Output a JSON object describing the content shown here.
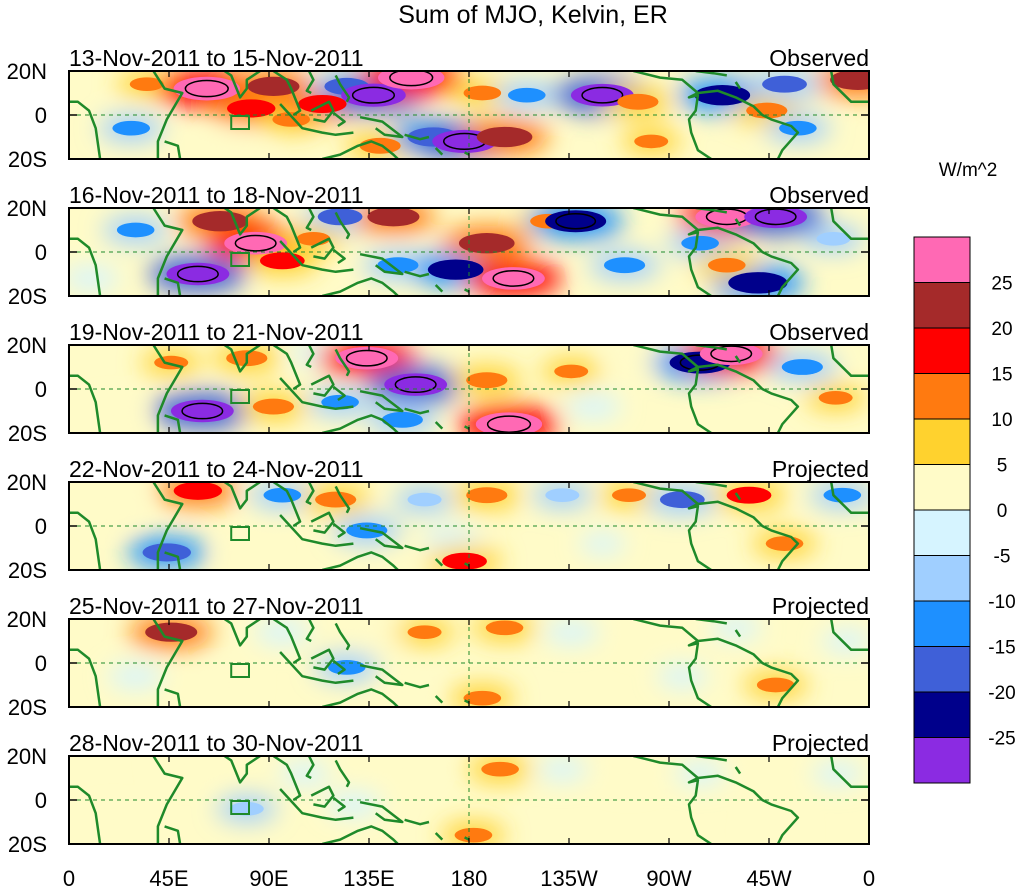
{
  "chart_data": {
    "type": "heatmap",
    "title": "Sum of MJO, Kelvin, ER",
    "colorbar": {
      "units": "W/m^2",
      "tick_labels": [
        "25",
        "20",
        "15",
        "10",
        "5",
        "0",
        "-5",
        "-10",
        "-15",
        "-20",
        "-25"
      ],
      "levels": [
        -25,
        -20,
        -15,
        -10,
        -5,
        0,
        5,
        10,
        15,
        20,
        25
      ],
      "colors": [
        "#8B2BE2",
        "#00008B",
        "#3F60D8",
        "#1E90FF",
        "#A0CFFF",
        "#D6F4FF",
        "#FFFBC8",
        "#FFD22E",
        "#FF7A10",
        "#FF0000",
        "#A52A2A",
        "#FF69B4"
      ]
    },
    "x_tick_labels": [
      "0",
      "45E",
      "90E",
      "135E",
      "180",
      "135W",
      "90W",
      "45W",
      "0"
    ],
    "x_ticks_deg": [
      0,
      45,
      90,
      135,
      180,
      225,
      270,
      315,
      360
    ],
    "y_tick_labels": [
      "20N",
      "0",
      "20S"
    ],
    "y_ticks_deg": [
      20,
      0,
      -20
    ],
    "xlim": [
      0,
      360
    ],
    "ylim": [
      -20,
      20
    ],
    "panels": [
      {
        "date_range": "13-Nov-2011 to 15-Nov-2011",
        "status": "Observed"
      },
      {
        "date_range": "16-Nov-2011 to 18-Nov-2011",
        "status": "Observed"
      },
      {
        "date_range": "19-Nov-2011 to 21-Nov-2011",
        "status": "Observed"
      },
      {
        "date_range": "22-Nov-2011 to 24-Nov-2011",
        "status": "Projected"
      },
      {
        "date_range": "25-Nov-2011 to 27-Nov-2011",
        "status": "Projected"
      },
      {
        "date_range": "28-Nov-2011 to 30-Nov-2011",
        "status": "Projected"
      }
    ],
    "anomalies": [
      [
        {
          "lon": 35,
          "lat": 14,
          "value": 10
        },
        {
          "lon": 62,
          "lat": 12,
          "value": 28
        },
        {
          "lon": 82,
          "lat": 3,
          "value": 18
        },
        {
          "lon": 92,
          "lat": 13,
          "value": 20
        },
        {
          "lon": 100,
          "lat": -2,
          "value": 12
        },
        {
          "lon": 114,
          "lat": 5,
          "value": 18
        },
        {
          "lon": 125,
          "lat": 13,
          "value": -16
        },
        {
          "lon": 137,
          "lat": 9,
          "value": -27
        },
        {
          "lon": 154,
          "lat": 17,
          "value": 28
        },
        {
          "lon": 140,
          "lat": -14,
          "value": 14
        },
        {
          "lon": 164,
          "lat": -10,
          "value": -20
        },
        {
          "lon": 178,
          "lat": -12,
          "value": -27
        },
        {
          "lon": 186,
          "lat": 10,
          "value": 12
        },
        {
          "lon": 196,
          "lat": -10,
          "value": 22
        },
        {
          "lon": 206,
          "lat": 9,
          "value": -12
        },
        {
          "lon": 240,
          "lat": 9,
          "value": -26
        },
        {
          "lon": 256,
          "lat": 6,
          "value": 14
        },
        {
          "lon": 294,
          "lat": 9,
          "value": -22
        },
        {
          "lon": 314,
          "lat": 2,
          "value": 14
        },
        {
          "lon": 328,
          "lat": -6,
          "value": -12
        },
        {
          "lon": 355,
          "lat": 16,
          "value": 22
        },
        {
          "lon": 28,
          "lat": -6,
          "value": -12
        },
        {
          "lon": 75,
          "lat": -16,
          "value": 8
        },
        {
          "lon": 262,
          "lat": -12,
          "value": 10
        },
        {
          "lon": 322,
          "lat": 14,
          "value": -16
        }
      ],
      [
        {
          "lon": 30,
          "lat": 10,
          "value": -12
        },
        {
          "lon": 58,
          "lat": -10,
          "value": -26
        },
        {
          "lon": 68,
          "lat": 14,
          "value": 22
        },
        {
          "lon": 84,
          "lat": 4,
          "value": 26
        },
        {
          "lon": 96,
          "lat": -4,
          "value": 16
        },
        {
          "lon": 122,
          "lat": 16,
          "value": -16
        },
        {
          "lon": 146,
          "lat": 16,
          "value": 20
        },
        {
          "lon": 148,
          "lat": -6,
          "value": -14
        },
        {
          "lon": 174,
          "lat": -8,
          "value": -22
        },
        {
          "lon": 188,
          "lat": 4,
          "value": 22
        },
        {
          "lon": 200,
          "lat": -12,
          "value": 26
        },
        {
          "lon": 216,
          "lat": 14,
          "value": 12
        },
        {
          "lon": 228,
          "lat": 14,
          "value": -25
        },
        {
          "lon": 250,
          "lat": -6,
          "value": -14
        },
        {
          "lon": 284,
          "lat": 4,
          "value": -12
        },
        {
          "lon": 296,
          "lat": 16,
          "value": 26
        },
        {
          "lon": 318,
          "lat": 16,
          "value": -26
        },
        {
          "lon": 310,
          "lat": -14,
          "value": -24
        },
        {
          "lon": 296,
          "lat": -6,
          "value": 12
        },
        {
          "lon": 344,
          "lat": 6,
          "value": -10
        },
        {
          "lon": 10,
          "lat": -12,
          "value": -8
        },
        {
          "lon": 110,
          "lat": 6,
          "value": 10
        }
      ],
      [
        {
          "lon": 20,
          "lat": -12,
          "value": 8
        },
        {
          "lon": 46,
          "lat": 12,
          "value": 10
        },
        {
          "lon": 60,
          "lat": -10,
          "value": -26
        },
        {
          "lon": 80,
          "lat": 14,
          "value": 14
        },
        {
          "lon": 92,
          "lat": -8,
          "value": 14
        },
        {
          "lon": 112,
          "lat": 16,
          "value": -8
        },
        {
          "lon": 134,
          "lat": 14,
          "value": 26
        },
        {
          "lon": 122,
          "lat": -6,
          "value": -12
        },
        {
          "lon": 156,
          "lat": 2,
          "value": -26
        },
        {
          "lon": 150,
          "lat": -14,
          "value": -14
        },
        {
          "lon": 188,
          "lat": 4,
          "value": 14
        },
        {
          "lon": 198,
          "lat": -16,
          "value": 28
        },
        {
          "lon": 226,
          "lat": 8,
          "value": 10
        },
        {
          "lon": 256,
          "lat": 14,
          "value": 8
        },
        {
          "lon": 284,
          "lat": 12,
          "value": -25
        },
        {
          "lon": 298,
          "lat": 16,
          "value": 26
        },
        {
          "lon": 330,
          "lat": 10,
          "value": -14
        },
        {
          "lon": 345,
          "lat": -4,
          "value": 10
        },
        {
          "lon": 236,
          "lat": -8,
          "value": -8
        }
      ],
      [
        {
          "lon": 20,
          "lat": 8,
          "value": 7
        },
        {
          "lon": 58,
          "lat": 16,
          "value": 18
        },
        {
          "lon": 44,
          "lat": -12,
          "value": -18
        },
        {
          "lon": 96,
          "lat": 14,
          "value": -12
        },
        {
          "lon": 120,
          "lat": 12,
          "value": 14
        },
        {
          "lon": 134,
          "lat": -2,
          "value": -14
        },
        {
          "lon": 160,
          "lat": 12,
          "value": -10
        },
        {
          "lon": 172,
          "lat": -6,
          "value": -8
        },
        {
          "lon": 188,
          "lat": 14,
          "value": 14
        },
        {
          "lon": 178,
          "lat": -16,
          "value": 16
        },
        {
          "lon": 222,
          "lat": 14,
          "value": -10
        },
        {
          "lon": 252,
          "lat": 14,
          "value": 10
        },
        {
          "lon": 276,
          "lat": 12,
          "value": -16
        },
        {
          "lon": 306,
          "lat": 14,
          "value": 16
        },
        {
          "lon": 322,
          "lat": -8,
          "value": 12
        },
        {
          "lon": 348,
          "lat": 14,
          "value": -12
        },
        {
          "lon": 80,
          "lat": -14,
          "value": 6
        },
        {
          "lon": 240,
          "lat": -8,
          "value": -4
        }
      ],
      [
        {
          "lon": 46,
          "lat": 14,
          "value": 20
        },
        {
          "lon": 30,
          "lat": -6,
          "value": -8
        },
        {
          "lon": 96,
          "lat": 14,
          "value": -8
        },
        {
          "lon": 125,
          "lat": -2,
          "value": -12
        },
        {
          "lon": 140,
          "lat": 12,
          "value": 6
        },
        {
          "lon": 160,
          "lat": 14,
          "value": 10
        },
        {
          "lon": 196,
          "lat": 16,
          "value": 12
        },
        {
          "lon": 186,
          "lat": -16,
          "value": 12
        },
        {
          "lon": 226,
          "lat": 14,
          "value": -8
        },
        {
          "lon": 260,
          "lat": 12,
          "value": 8
        },
        {
          "lon": 276,
          "lat": -6,
          "value": -6
        },
        {
          "lon": 300,
          "lat": 16,
          "value": -6
        },
        {
          "lon": 318,
          "lat": -10,
          "value": 12
        },
        {
          "lon": 350,
          "lat": 10,
          "value": -6
        },
        {
          "lon": 72,
          "lat": -10,
          "value": 4
        },
        {
          "lon": 150,
          "lat": -12,
          "value": 4
        }
      ],
      [
        {
          "lon": 52,
          "lat": 16,
          "value": 8
        },
        {
          "lon": 80,
          "lat": -4,
          "value": -10
        },
        {
          "lon": 106,
          "lat": 12,
          "value": -6
        },
        {
          "lon": 128,
          "lat": -2,
          "value": -8
        },
        {
          "lon": 150,
          "lat": 14,
          "value": 8
        },
        {
          "lon": 182,
          "lat": -16,
          "value": 12
        },
        {
          "lon": 194,
          "lat": 14,
          "value": 12
        },
        {
          "lon": 222,
          "lat": 14,
          "value": -6
        },
        {
          "lon": 252,
          "lat": 12,
          "value": 8
        },
        {
          "lon": 284,
          "lat": 12,
          "value": -6
        },
        {
          "lon": 310,
          "lat": 14,
          "value": 6
        },
        {
          "lon": 318,
          "lat": -14,
          "value": 6
        },
        {
          "lon": 20,
          "lat": -10,
          "value": 4
        },
        {
          "lon": 346,
          "lat": 12,
          "value": -6
        }
      ]
    ]
  }
}
